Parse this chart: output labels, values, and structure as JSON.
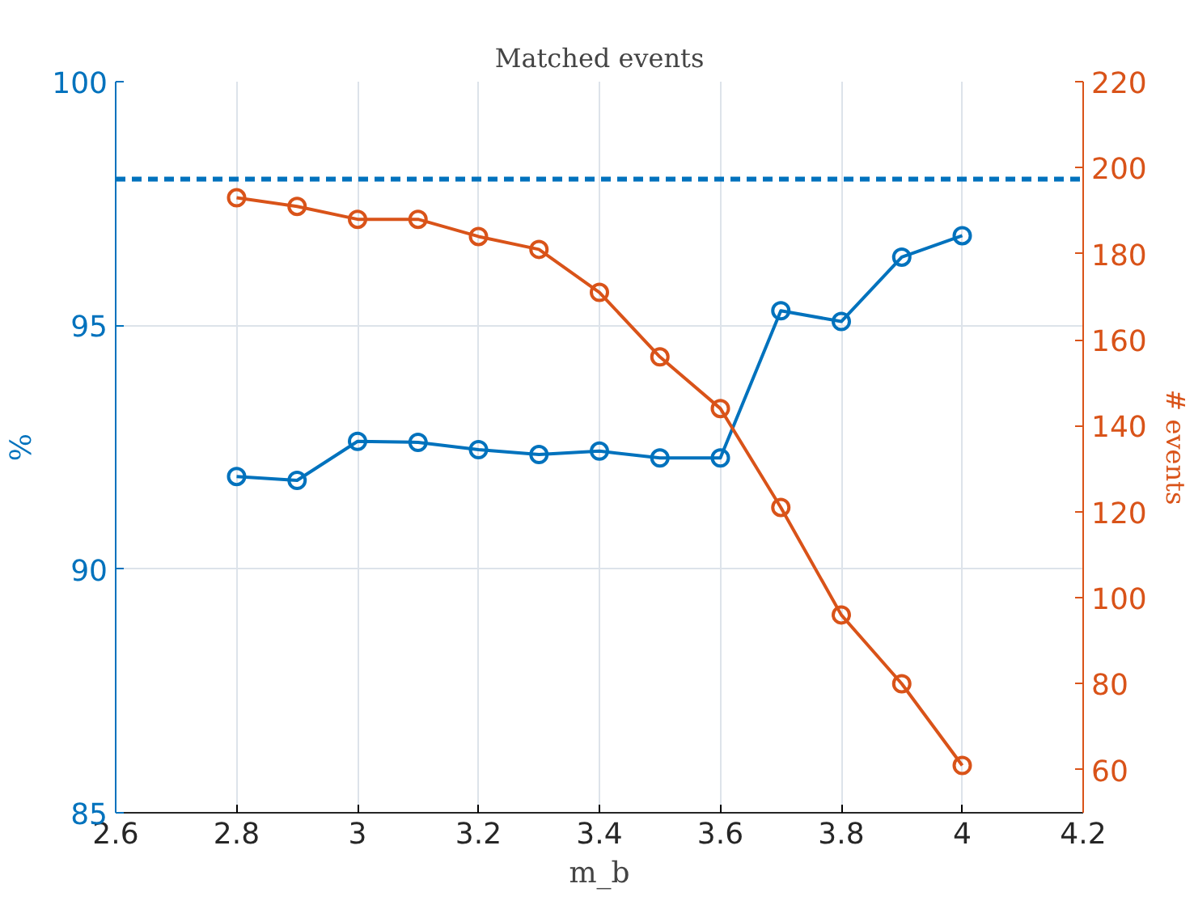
{
  "chart_data": {
    "type": "line",
    "title": "Matched events",
    "xlabel": "m_b",
    "ylabel": "%",
    "y2label": "# events",
    "x": [
      2.8,
      2.9,
      3.0,
      3.1,
      3.2,
      3.3,
      3.4,
      3.5,
      3.6,
      3.7,
      3.8,
      3.9,
      4.0
    ],
    "series": [
      {
        "color": "#0072bd",
        "values": [
          91.9,
          91.82,
          92.62,
          92.6,
          92.45,
          92.35,
          92.42,
          92.28,
          92.28,
          95.3,
          95.08,
          96.4,
          96.84
        ]
      },
      {
        "color": "#d95319",
        "axis": "y2",
        "values": [
          193,
          191,
          188,
          188,
          184,
          181,
          171,
          156,
          144,
          121,
          96,
          80,
          61
        ]
      }
    ],
    "xlim": [
      2.6,
      4.2
    ],
    "xticks": [
      2.6,
      2.8,
      3,
      3.2,
      3.4,
      3.6,
      3.8,
      4,
      4.2
    ],
    "ylim": [
      85,
      100
    ],
    "yticks": [
      85,
      90,
      95,
      100
    ],
    "y2lim": [
      50,
      220
    ],
    "y2ticks": [
      60,
      80,
      100,
      120,
      140,
      160,
      180,
      200,
      220
    ],
    "ref_lines": [
      {
        "axis": "y",
        "value": 98,
        "color": "#0072bd",
        "line_style": "dashed"
      }
    ],
    "grid": true,
    "marker": "circle",
    "line_style": "solid"
  }
}
